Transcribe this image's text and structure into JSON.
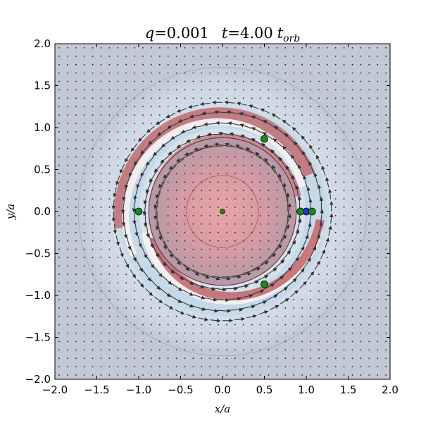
{
  "chart_data": {
    "type": "vector field over density map",
    "title": "q = 0.001    t = 4.00 t_orb",
    "title_parts": {
      "q_label": "q",
      "q_value": "=0.001",
      "t_label": "t",
      "t_value": "=4.00",
      "t_unit": "t",
      "t_unit_sub": "orb"
    },
    "xlabel": "x/a",
    "ylabel": "y/a",
    "xlim": [
      -2.0,
      2.0
    ],
    "ylim": [
      -2.0,
      2.0
    ],
    "x_ticks": [
      "−2.0",
      "−1.5",
      "−1.0",
      "−0.5",
      "0.0",
      "0.5",
      "1.0",
      "1.5",
      "2.0"
    ],
    "y_ticks": [
      "2.0",
      "1.5",
      "1.0",
      "0.5",
      "0.0",
      "−0.5",
      "−1.0",
      "−1.5",
      "−2.0"
    ],
    "grid": false,
    "colors": {
      "background": "#c2c8d5",
      "outer_halo": "#cfd9e6",
      "disk_center": "#e6a5a8",
      "arm": "#c1646a",
      "white_gap": "#f6f1f1",
      "blue_ring": "#c6d9e8",
      "arrow": "#3a3a3a",
      "marker_green": "#1a8a1a",
      "marker_blue": "#1d33d8"
    },
    "markers": [
      {
        "x": 0.0,
        "y": 0.0,
        "kind": "central_star"
      },
      {
        "x": 1.0,
        "y": 0.0,
        "kind": "planet"
      },
      {
        "x": 0.93,
        "y": 0.0,
        "kind": "L1"
      },
      {
        "x": 1.07,
        "y": 0.0,
        "kind": "L2"
      },
      {
        "x": -1.0,
        "y": 0.0,
        "kind": "L3"
      },
      {
        "x": 0.5,
        "y": 0.866,
        "kind": "L4"
      },
      {
        "x": 0.5,
        "y": -0.866,
        "kind": "L5"
      }
    ]
  }
}
